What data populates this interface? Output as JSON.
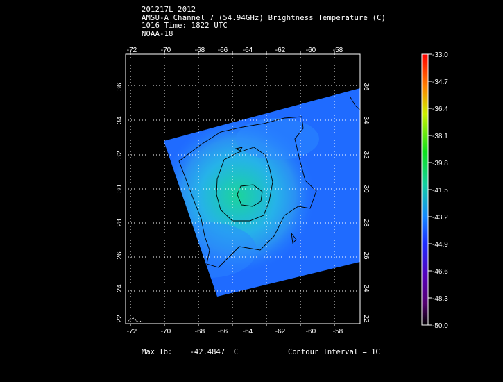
{
  "header": {
    "line1": "201217L 2012",
    "line2": "AMSU-A Channel 7 (54.94GHz) Brightness Temperature (C)",
    "line3": "1016 Time: 1822 UTC",
    "line4": "NOAA-18"
  },
  "map": {
    "lon_ticks": [
      "-72",
      "-70",
      "-68",
      "-66",
      "-64",
      "-62",
      "-60",
      "-58"
    ],
    "lat_ticks": [
      "22",
      "24",
      "26",
      "28",
      "30",
      "32",
      "34",
      "36"
    ]
  },
  "colorbar": {
    "labels": [
      "-33.0",
      "-34.7",
      "-36.4",
      "-38.1",
      "-39.8",
      "-41.5",
      "-43.2",
      "-44.9",
      "-46.6",
      "-48.3",
      "-50.0"
    ]
  },
  "footer": {
    "max_tb_label": "Max Tb:",
    "max_tb_value": "-42.4847",
    "max_tb_unit": "C",
    "contour_label": "Contour Interval = 1C"
  },
  "colors": {
    "background": "#000000",
    "swath": "#1f6bff",
    "core": "#19d7a7"
  }
}
